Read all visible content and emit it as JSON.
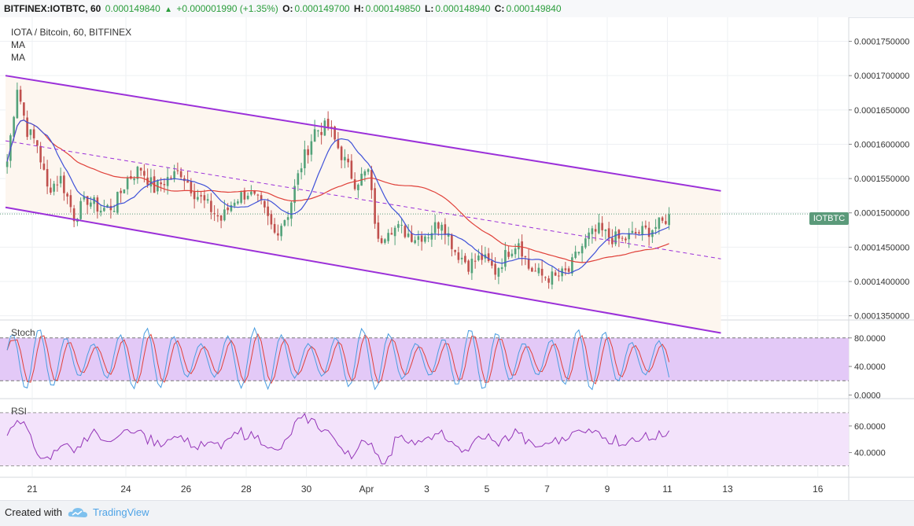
{
  "header": {
    "symbol": "BITFINEX:IOTBTC, 60",
    "last": "0.000149840",
    "change": "+0.000001990 (+1.35%)",
    "o_label": "O:",
    "o_value": "0.000149700",
    "h_label": "H:",
    "h_value": "0.000149850",
    "l_label": "L:",
    "l_value": "0.000148940",
    "c_label": "C:",
    "c_value": "0.000149840"
  },
  "legend": {
    "title": "IOTA / Bitcoin, 60, BITFINEX",
    "ma1": "MA",
    "ma2": "MA"
  },
  "price_tag": "IOTBTC",
  "panes": {
    "stoch": "Stoch",
    "rsi": "RSI"
  },
  "footer": {
    "created": "Created with",
    "brand": "TradingView"
  },
  "colors": {
    "channel": "#9b30d9",
    "ma_fast": "#3f51d8",
    "ma_slow": "#e0413a",
    "candle_up": "#53a27a",
    "candle_down": "#c0504d",
    "stoch_k": "#4a9de0",
    "stoch_d": "#e0413a",
    "rsi": "#9435b8",
    "stoch_band": "#e3c9f7",
    "rsi_band": "#f3e3fb"
  },
  "chart_data": {
    "type": "candlestick",
    "price_axis": {
      "ticks": [
        "0.0001750000",
        "0.0001700000",
        "0.0001650000",
        "0.0001600000",
        "0.0001550000",
        "0.0001500000",
        "0.0001450000",
        "0.0001400000",
        "0.0001350000"
      ],
      "ylim": [
        0.0001345,
        0.0001785
      ]
    },
    "x_axis": {
      "ticks": [
        {
          "label": "21",
          "idx": 8
        },
        {
          "label": "24",
          "idx": 36
        },
        {
          "label": "26",
          "idx": 54
        },
        {
          "label": "28",
          "idx": 72
        },
        {
          "label": "30",
          "idx": 90
        },
        {
          "label": "Apr",
          "idx": 108
        },
        {
          "label": "3",
          "idx": 126
        },
        {
          "label": "5",
          "idx": 144
        },
        {
          "label": "7",
          "idx": 162
        },
        {
          "label": "9",
          "idx": 180
        },
        {
          "label": "11",
          "idx": 198
        },
        {
          "label": "13",
          "idx": 216
        },
        {
          "label": "16",
          "idx": 243
        }
      ],
      "n_slots": 250
    },
    "anchors": [
      [
        0,
        0.0001575
      ],
      [
        3,
        0.0001685
      ],
      [
        6,
        0.000162
      ],
      [
        9,
        0.00016
      ],
      [
        12,
        0.0001535
      ],
      [
        16,
        0.000155
      ],
      [
        20,
        0.0001495
      ],
      [
        24,
        0.000152
      ],
      [
        28,
        0.0001505
      ],
      [
        32,
        0.000151
      ],
      [
        36,
        0.000155
      ],
      [
        40,
        0.0001565
      ],
      [
        44,
        0.0001535
      ],
      [
        48,
        0.000155
      ],
      [
        52,
        0.000156
      ],
      [
        56,
        0.000153
      ],
      [
        60,
        0.000151
      ],
      [
        64,
        0.000149
      ],
      [
        68,
        0.000152
      ],
      [
        72,
        0.000153
      ],
      [
        76,
        0.000151
      ],
      [
        80,
        0.000147
      ],
      [
        84,
        0.00015
      ],
      [
        88,
        0.000157
      ],
      [
        92,
        0.000162
      ],
      [
        96,
        0.0001625
      ],
      [
        100,
        0.0001585
      ],
      [
        104,
        0.0001545
      ],
      [
        108,
        0.000156
      ],
      [
        111,
        0.0001455
      ],
      [
        114,
        0.000148
      ],
      [
        118,
        0.0001475
      ],
      [
        122,
        0.0001465
      ],
      [
        126,
        0.000147
      ],
      [
        130,
        0.000149
      ],
      [
        134,
        0.0001445
      ],
      [
        138,
        0.0001425
      ],
      [
        142,
        0.0001435
      ],
      [
        146,
        0.0001415
      ],
      [
        150,
        0.0001445
      ],
      [
        153,
        0.000146
      ],
      [
        156,
        0.000142
      ],
      [
        160,
        0.0001408
      ],
      [
        164,
        0.0001405
      ],
      [
        168,
        0.0001415
      ],
      [
        171,
        0.0001445
      ],
      [
        174,
        0.0001465
      ],
      [
        177,
        0.0001475
      ],
      [
        180,
        0.0001465
      ],
      [
        184,
        0.000146
      ],
      [
        188,
        0.000147
      ],
      [
        192,
        0.0001475
      ],
      [
        196,
        0.0001485
      ],
      [
        198,
        0.0001498
      ]
    ],
    "series": [
      {
        "name": "MA",
        "key": "ma_fast"
      },
      {
        "name": "MA",
        "key": "ma_slow"
      }
    ],
    "channel": {
      "upper": [
        [
          0,
          0.00017
        ],
        [
          214,
          0.0001532
        ]
      ],
      "lower": [
        [
          0,
          0.0001508
        ],
        [
          214,
          0.0001325
        ]
      ],
      "mid": [
        [
          0,
          0.0001605
        ],
        [
          214,
          0.0001433
        ]
      ]
    },
    "last_price": 0.00014984,
    "stoch": {
      "ticks": [
        "80.0000",
        "40.0000",
        "0.0000"
      ],
      "ylim": [
        -4,
        104
      ],
      "band": [
        80,
        20
      ]
    },
    "rsi": {
      "ticks": [
        "60.0000",
        "40.0000"
      ],
      "ylim": [
        22,
        80
      ],
      "band": [
        70,
        30
      ]
    }
  }
}
